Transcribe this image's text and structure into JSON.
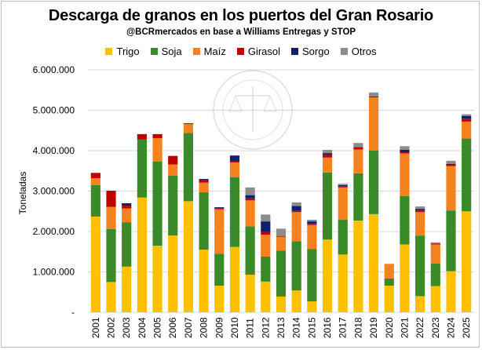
{
  "chart_data": {
    "type": "bar",
    "stacked": true,
    "title": "Descarga de granos en los puertos del Gran Rosario",
    "subtitle": "@BCRmercados en base a Williams Entregas y STOP",
    "xlabel": "",
    "ylabel": "Toneladas",
    "ylim": [
      0,
      6000000
    ],
    "yticks": [
      0,
      1000000,
      2000000,
      3000000,
      4000000,
      5000000,
      6000000
    ],
    "ytick_labels": [
      "-",
      "1.000.000",
      "2.000.000",
      "3.000.000",
      "4.000.000",
      "5.000.000",
      "6.000.000"
    ],
    "grid": true,
    "legend_position": "top",
    "categories": [
      "2001",
      "2002",
      "2003",
      "2004",
      "2005",
      "2006",
      "2007",
      "2008",
      "2009",
      "2010",
      "2011",
      "2012",
      "2013",
      "2014",
      "2015",
      "2016",
      "2017",
      "2018",
      "2019",
      "2020",
      "2021",
      "2022",
      "2023",
      "2024",
      "2025"
    ],
    "series": [
      {
        "name": "Trigo",
        "color": "#ffc000",
        "values": [
          2370000,
          750000,
          1130000,
          2840000,
          1650000,
          1900000,
          2750000,
          1550000,
          660000,
          1620000,
          930000,
          760000,
          390000,
          540000,
          270000,
          1800000,
          1430000,
          2270000,
          2430000,
          660000,
          1680000,
          400000,
          650000,
          1020000,
          2500000
        ]
      },
      {
        "name": "Soja",
        "color": "#3a8a2a",
        "values": [
          780000,
          1310000,
          1100000,
          1440000,
          2080000,
          1480000,
          1690000,
          1420000,
          790000,
          1720000,
          1200000,
          620000,
          1140000,
          1220000,
          1300000,
          1660000,
          860000,
          1170000,
          1570000,
          180000,
          1200000,
          1500000,
          560000,
          1500000,
          1800000
        ]
      },
      {
        "name": "Maíz",
        "color": "#f5821f",
        "values": [
          170000,
          550000,
          340000,
          0,
          580000,
          280000,
          220000,
          240000,
          1100000,
          370000,
          640000,
          540000,
          340000,
          720000,
          590000,
          370000,
          800000,
          590000,
          1320000,
          360000,
          1050000,
          580000,
          470000,
          1100000,
          420000
        ]
      },
      {
        "name": "Girasol",
        "color": "#c00000",
        "values": [
          130000,
          400000,
          70000,
          130000,
          100000,
          210000,
          20000,
          60000,
          20000,
          20000,
          50000,
          80000,
          20000,
          30000,
          30000,
          60000,
          30000,
          60000,
          20000,
          0,
          30000,
          40000,
          20000,
          30000,
          70000
        ]
      },
      {
        "name": "Sorgo",
        "color": "#10206a",
        "values": [
          0,
          0,
          60000,
          0,
          0,
          0,
          0,
          30000,
          30000,
          150000,
          80000,
          250000,
          0,
          120000,
          60000,
          50000,
          30000,
          0,
          0,
          0,
          60000,
          40000,
          0,
          20000,
          70000
        ]
      },
      {
        "name": "Otros",
        "color": "#8c8c8c",
        "values": [
          0,
          0,
          0,
          0,
          0,
          0,
          0,
          0,
          0,
          0,
          190000,
          170000,
          180000,
          90000,
          40000,
          80000,
          30000,
          100000,
          100000,
          0,
          90000,
          60000,
          30000,
          80000,
          40000
        ]
      }
    ]
  }
}
